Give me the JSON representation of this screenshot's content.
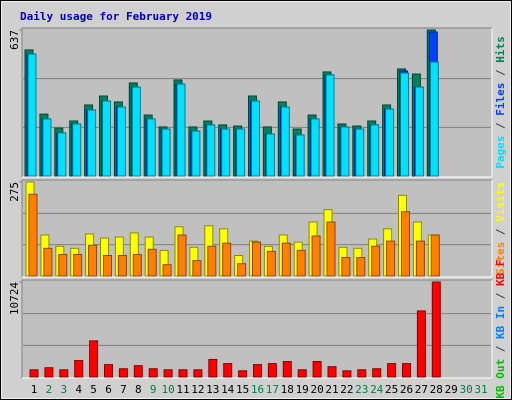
{
  "chart_data": {
    "type": "bar",
    "title": "Daily usage for February 2019",
    "separator": " / ",
    "categories": [
      "1",
      "2",
      "3",
      "4",
      "5",
      "6",
      "7",
      "8",
      "9",
      "10",
      "11",
      "12",
      "13",
      "14",
      "15",
      "16",
      "17",
      "18",
      "19",
      "20",
      "21",
      "22",
      "23",
      "24",
      "25",
      "26",
      "27",
      "28",
      "29",
      "30",
      "31"
    ],
    "category_colors": [
      "#000000",
      "#008040",
      "#008040",
      "#000000",
      "#000000",
      "#000000",
      "#000000",
      "#000000",
      "#008040",
      "#008040",
      "#000000",
      "#000000",
      "#000000",
      "#000000",
      "#000000",
      "#008040",
      "#008040",
      "#000000",
      "#000000",
      "#000000",
      "#000000",
      "#000000",
      "#008040",
      "#008040",
      "#000000",
      "#000000",
      "#000000",
      "#000000",
      "#000000",
      "#008040",
      "#008040"
    ],
    "panels": [
      {
        "ylim": [
          0,
          637
        ],
        "yticks": [
          637
        ],
        "series": [
          {
            "name": "Hits",
            "color": "#008060",
            "values": [
              550,
              270,
              209,
              240,
              310,
              349,
              323,
              406,
              266,
              214,
              419,
              214,
              240,
              223,
              218,
              349,
              214,
              323,
              205,
              266,
              454,
              227,
              218,
              240,
              310,
              467,
              445,
              637,
              null,
              null,
              null
            ]
          },
          {
            "name": "Files",
            "color": "#0040ff",
            "values": [
              532,
              249,
              188,
              227,
              288,
              327,
              301,
              388,
              249,
              205,
              401,
              196,
              223,
              205,
              205,
              327,
              183,
              301,
              179,
              249,
              441,
              214,
              205,
              223,
              292,
              458,
              388,
              628,
              null,
              null,
              null
            ]
          },
          {
            "name": "Pages",
            "color": "#00e0ff",
            "values": [
              532,
              249,
              188,
              227,
              288,
              327,
              301,
              388,
              249,
              205,
              401,
              196,
              223,
              205,
              205,
              327,
              183,
              301,
              179,
              249,
              441,
              214,
              205,
              223,
              292,
              449,
              388,
              497,
              null,
              null,
              null
            ]
          }
        ]
      },
      {
        "ylim": [
          0,
          275
        ],
        "yticks": [
          275
        ],
        "series": [
          {
            "name": "Visits",
            "color": "#ffff00",
            "values": [
              275,
              120,
              87,
              81,
              123,
              111,
              114,
              126,
              114,
              75,
              144,
              84,
              147,
              138,
              60,
              102,
              87,
              120,
              99,
              158,
              194,
              84,
              81,
              108,
              138,
              236,
              158,
              120,
              null,
              null,
              null
            ]
          },
          {
            "name": "Sites",
            "color": "#ff8000",
            "values": [
              239,
              81,
              63,
              63,
              90,
              60,
              60,
              63,
              78,
              33,
              120,
              45,
              87,
              96,
              36,
              99,
              72,
              96,
              75,
              117,
              158,
              54,
              54,
              87,
              102,
              188,
              102,
              120,
              null,
              null,
              null
            ]
          }
        ]
      },
      {
        "ylim": [
          0,
          10724
        ],
        "yticks": [
          10724
        ],
        "series": [
          {
            "name": "KB F",
            "color": "#ff0000",
            "values": [
              816,
              1049,
              816,
              1865,
              4080,
              1399,
              932,
              1282,
              932,
              816,
              816,
              816,
              1982,
              1515,
              699,
              1399,
              1515,
              1748,
              816,
              1748,
              1166,
              699,
              816,
              932,
              1515,
              1515,
              7460,
              10724,
              null,
              null,
              null
            ]
          },
          {
            "name": "KB In",
            "color": "#0080ff"
          },
          {
            "name": "KB Out",
            "color": "#00c000"
          }
        ]
      }
    ]
  }
}
